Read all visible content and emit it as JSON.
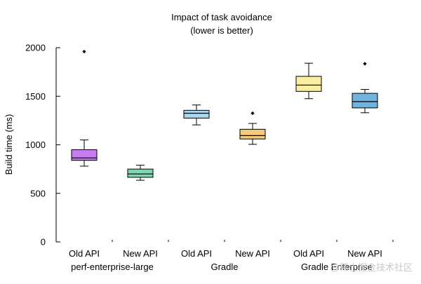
{
  "chart_data": {
    "type": "box",
    "title": "Impact of task avoidance",
    "subtitle": "(lower is better)",
    "xlabel": "",
    "ylabel": "Build time (ms)",
    "ylim": [
      0,
      2000
    ],
    "yticks": [
      0,
      500,
      1000,
      1500,
      2000
    ],
    "grid": false,
    "legend": "none",
    "groups": [
      "perf-enterprise-large",
      "Gradle",
      "Gradle Enterprise"
    ],
    "boxes": [
      {
        "group": "perf-enterprise-large",
        "label": "Old API",
        "min": 780,
        "q1": 840,
        "median": 865,
        "q3": 950,
        "max": 1050,
        "outliers": [
          1960
        ],
        "color": "#c77df0"
      },
      {
        "group": "perf-enterprise-large",
        "label": "New API",
        "min": 635,
        "q1": 665,
        "median": 700,
        "q3": 750,
        "max": 790,
        "outliers": [],
        "color": "#7fd6b2"
      },
      {
        "group": "Gradle",
        "label": "Old API",
        "min": 1205,
        "q1": 1275,
        "median": 1325,
        "q3": 1355,
        "max": 1410,
        "outliers": [],
        "color": "#a9d8ee"
      },
      {
        "group": "Gradle",
        "label": "New API",
        "min": 1005,
        "q1": 1060,
        "median": 1095,
        "q3": 1160,
        "max": 1220,
        "outliers": [
          1325
        ],
        "color": "#f6c87a"
      },
      {
        "group": "Gradle Enterprise",
        "label": "Old API",
        "min": 1475,
        "q1": 1550,
        "median": 1615,
        "q3": 1705,
        "max": 1840,
        "outliers": [],
        "color": "#faeea0"
      },
      {
        "group": "Gradle Enterprise",
        "label": "New API",
        "min": 1330,
        "q1": 1380,
        "median": 1445,
        "q3": 1530,
        "max": 1570,
        "outliers": [
          1835
        ],
        "color": "#70b4de"
      }
    ]
  },
  "watermark": "@稀土掘金技术社区"
}
